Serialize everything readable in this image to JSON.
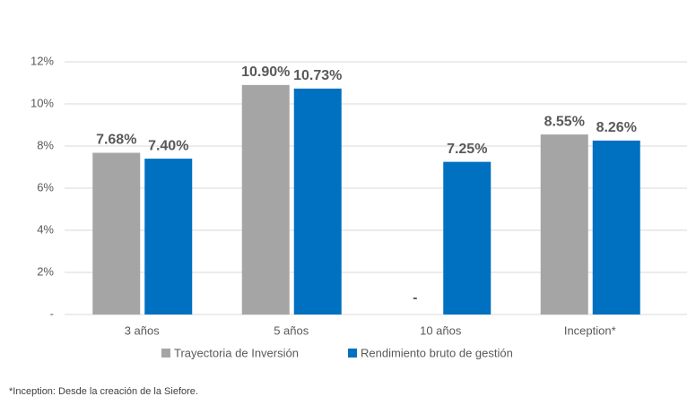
{
  "chart_data": {
    "type": "bar",
    "categories": [
      "3 años",
      "5 años",
      "10 años",
      "Inception*"
    ],
    "series": [
      {
        "name": "Trayectoria de Inversión",
        "color": "#a5a5a5",
        "values": [
          7.68,
          10.9,
          null,
          8.55
        ],
        "value_labels": [
          "7.68%",
          "10.90%",
          "-",
          "8.55%"
        ]
      },
      {
        "name": "Rendimiento bruto de gestión",
        "color": "#0070c0",
        "values": [
          7.4,
          10.73,
          7.25,
          8.26
        ],
        "value_labels": [
          "7.40%",
          "10.73%",
          "7.25%",
          "8.26%"
        ]
      }
    ],
    "ylim": [
      0,
      12
    ],
    "yticks": [
      {
        "value": 0,
        "label": "-"
      },
      {
        "value": 2,
        "label": "2%"
      },
      {
        "value": 4,
        "label": "4%"
      },
      {
        "value": 6,
        "label": "6%"
      },
      {
        "value": 8,
        "label": "8%"
      },
      {
        "value": 10,
        "label": "10%"
      },
      {
        "value": 12,
        "label": "12%"
      }
    ],
    "grid": true,
    "legend": "bottom",
    "footnote": "*Inception: Desde la creación de la Siefore."
  }
}
